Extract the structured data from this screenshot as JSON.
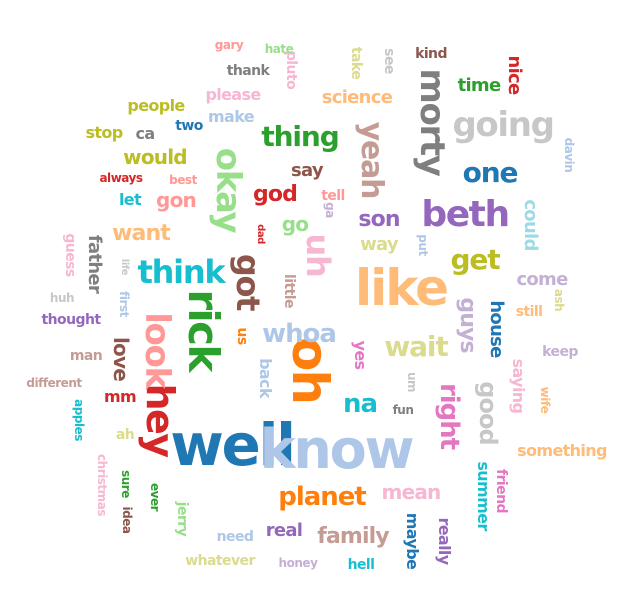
{
  "words": [
    {
      "text": "well",
      "color": "#1f77b4",
      "v": false
    },
    {
      "text": "know",
      "color": "#aec7e8",
      "v": false
    },
    {
      "text": "oh",
      "color": "#ff7f0e",
      "v": true
    },
    {
      "text": "like",
      "color": "#ffbb78",
      "v": false
    },
    {
      "text": "rick",
      "color": "#2ca02c",
      "v": true
    },
    {
      "text": "hey",
      "color": "#d62728",
      "v": true
    },
    {
      "text": "look",
      "color": "#ff9896",
      "v": true
    },
    {
      "text": "okay",
      "color": "#98df8a",
      "v": true
    },
    {
      "text": "beth",
      "color": "#9467bd",
      "v": false
    },
    {
      "text": "going",
      "color": "#c7c7c7",
      "v": false
    },
    {
      "text": "morty",
      "color": "#7f7f7f",
      "v": true
    },
    {
      "text": "think",
      "color": "#17becf",
      "v": false
    },
    {
      "text": "got",
      "color": "#8c564b",
      "v": true
    },
    {
      "text": "uh",
      "color": "#f7b6d2",
      "v": true
    },
    {
      "text": "yeah",
      "color": "#c49c94",
      "v": true
    },
    {
      "text": "planet",
      "color": "#ff7f0e",
      "v": false
    },
    {
      "text": "one",
      "color": "#1f77b4",
      "v": false
    },
    {
      "text": "thing",
      "color": "#2ca02c",
      "v": false
    },
    {
      "text": "wait",
      "color": "#dbdb8d",
      "v": false
    },
    {
      "text": "get",
      "color": "#bcbd22",
      "v": false
    },
    {
      "text": "whoa",
      "color": "#aec7e8",
      "v": false
    },
    {
      "text": "right",
      "color": "#e377c2",
      "v": true
    },
    {
      "text": "na",
      "color": "#17becf",
      "v": false
    },
    {
      "text": "family",
      "color": "#c49c94",
      "v": false
    },
    {
      "text": "good",
      "color": "#c7c7c7",
      "v": true
    },
    {
      "text": "guys",
      "color": "#c5b0d5",
      "v": true
    },
    {
      "text": "want",
      "color": "#ffbb78",
      "v": false
    },
    {
      "text": "god",
      "color": "#d62728",
      "v": false
    },
    {
      "text": "son",
      "color": "#9467bd",
      "v": false
    },
    {
      "text": "gon",
      "color": "#ff9896",
      "v": false
    },
    {
      "text": "science",
      "color": "#ffbb78",
      "v": false
    },
    {
      "text": "would",
      "color": "#bcbd22",
      "v": false
    },
    {
      "text": "mean",
      "color": "#f7b6d2",
      "v": false
    },
    {
      "text": "love",
      "color": "#8c564b",
      "v": true
    },
    {
      "text": "go",
      "color": "#98df8a",
      "v": false
    },
    {
      "text": "time",
      "color": "#2ca02c",
      "v": false
    },
    {
      "text": "say",
      "color": "#8c564b",
      "v": false
    },
    {
      "text": "could",
      "color": "#9edae5",
      "v": true
    },
    {
      "text": "house",
      "color": "#1f77b4",
      "v": true
    },
    {
      "text": "real",
      "color": "#9467bd",
      "v": false
    },
    {
      "text": "father",
      "color": "#7f7f7f",
      "v": true
    },
    {
      "text": "nice",
      "color": "#d62728",
      "v": true
    },
    {
      "text": "way",
      "color": "#dbdb8d",
      "v": false
    },
    {
      "text": "come",
      "color": "#c5b0d5",
      "v": false
    },
    {
      "text": "let",
      "color": "#17becf",
      "v": false
    },
    {
      "text": "something",
      "color": "#ffbb78",
      "v": false
    },
    {
      "text": "yes",
      "color": "#e377c2",
      "v": true
    },
    {
      "text": "back",
      "color": "#aec7e8",
      "v": true
    },
    {
      "text": "saying",
      "color": "#f7b6d2",
      "v": true
    },
    {
      "text": "summer",
      "color": "#17becf",
      "v": true
    },
    {
      "text": "maybe",
      "color": "#1f77b4",
      "v": true
    },
    {
      "text": "stop",
      "color": "#bcbd22",
      "v": false
    },
    {
      "text": "people",
      "color": "#bcbd22",
      "v": false
    },
    {
      "text": "make",
      "color": "#aec7e8",
      "v": false
    },
    {
      "text": "please",
      "color": "#f7b6d2",
      "v": false
    },
    {
      "text": "really",
      "color": "#9467bd",
      "v": true
    },
    {
      "text": "mm",
      "color": "#d62728",
      "v": false
    },
    {
      "text": "keep",
      "color": "#c5b0d5",
      "v": false
    },
    {
      "text": "thank",
      "color": "#7f7f7f",
      "v": false
    },
    {
      "text": "two",
      "color": "#1f77b4",
      "v": false
    },
    {
      "text": "ca",
      "color": "#7f7f7f",
      "v": false
    },
    {
      "text": "man",
      "color": "#c49c94",
      "v": false
    },
    {
      "text": "kind",
      "color": "#8c564b",
      "v": false
    },
    {
      "text": "tell",
      "color": "#ff9896",
      "v": false
    },
    {
      "text": "need",
      "color": "#aec7e8",
      "v": false
    },
    {
      "text": "pluto",
      "color": "#f7b6d2",
      "v": true
    },
    {
      "text": "take",
      "color": "#dbdb8d",
      "v": true
    },
    {
      "text": "see",
      "color": "#c7c7c7",
      "v": true
    },
    {
      "text": "little",
      "color": "#c49c94",
      "v": true
    },
    {
      "text": "us",
      "color": "#ff7f0e",
      "v": true
    },
    {
      "text": "hell",
      "color": "#17becf",
      "v": false
    },
    {
      "text": "guess",
      "color": "#f7b6d2",
      "v": true
    },
    {
      "text": "thought",
      "color": "#9467bd",
      "v": false
    },
    {
      "text": "ah",
      "color": "#dbdb8d",
      "v": false
    },
    {
      "text": "still",
      "color": "#ffbb78",
      "v": false
    },
    {
      "text": "friend",
      "color": "#e377c2",
      "v": true
    },
    {
      "text": "jerry",
      "color": "#98df8a",
      "v": true
    },
    {
      "text": "gary",
      "color": "#ff9896",
      "v": false
    },
    {
      "text": "hate",
      "color": "#98df8a",
      "v": false
    },
    {
      "text": "always",
      "color": "#d62728",
      "v": false
    },
    {
      "text": "best",
      "color": "#ff9896",
      "v": false
    },
    {
      "text": "fun",
      "color": "#7f7f7f",
      "v": false
    },
    {
      "text": "um",
      "color": "#c7c7c7",
      "v": true
    },
    {
      "text": "davin",
      "color": "#aec7e8",
      "v": true
    },
    {
      "text": "put",
      "color": "#aec7e8",
      "v": true
    },
    {
      "text": "dad",
      "color": "#d62728",
      "v": true
    },
    {
      "text": "life",
      "color": "#c7c7c7",
      "v": true
    },
    {
      "text": "first",
      "color": "#aec7e8",
      "v": true
    },
    {
      "text": "huh",
      "color": "#c7c7c7",
      "v": false
    },
    {
      "text": "different",
      "color": "#c49c94",
      "v": false
    },
    {
      "text": "apples",
      "color": "#17becf",
      "v": true
    },
    {
      "text": "christmas",
      "color": "#f7b6d2",
      "v": true
    },
    {
      "text": "sure",
      "color": "#2ca02c",
      "v": true
    },
    {
      "text": "ever",
      "color": "#2ca02c",
      "v": true
    },
    {
      "text": "idea",
      "color": "#8c564b",
      "v": true
    },
    {
      "text": "whatever",
      "color": "#dbdb8d",
      "v": false
    },
    {
      "text": "honey",
      "color": "#c5b0d5",
      "v": false
    },
    {
      "text": "ash",
      "color": "#dbdb8d",
      "v": true
    },
    {
      "text": "wife",
      "color": "#ffbb78",
      "v": true
    },
    {
      "text": "ga",
      "color": "#c5b0d5",
      "v": true
    }
  ]
}
